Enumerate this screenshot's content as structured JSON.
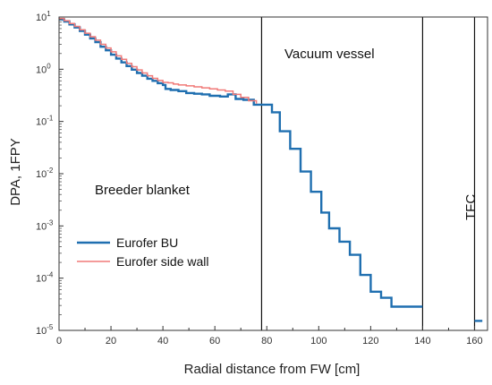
{
  "chart_data": {
    "type": "line",
    "xlabel": "Radial distance from FW [cm]",
    "ylabel": "DPA, 1FPY",
    "xlim": [
      0,
      165
    ],
    "ylim": [
      1e-05,
      10
    ],
    "yscale": "log",
    "x_ticks": [
      0,
      20,
      40,
      60,
      80,
      100,
      120,
      140,
      160
    ],
    "y_ticks": [
      {
        "value": 1e-05,
        "base": "10",
        "exp": "-5"
      },
      {
        "value": 0.0001,
        "base": "10",
        "exp": "-4"
      },
      {
        "value": 0.001,
        "base": "10",
        "exp": "-3"
      },
      {
        "value": 0.01,
        "base": "10",
        "exp": "-2"
      },
      {
        "value": 0.1,
        "base": "10",
        "exp": "-1"
      },
      {
        "value": 1,
        "base": "10",
        "exp": "0"
      },
      {
        "value": 10,
        "base": "10",
        "exp": "1"
      }
    ],
    "grid": false,
    "legend_position": "bottom-left",
    "region_boundaries": [
      78,
      140,
      160
    ],
    "annotations": [
      {
        "text": "Breeder blanket"
      },
      {
        "text": "Vacuum vessel"
      },
      {
        "text": "TFC"
      }
    ],
    "series": [
      {
        "name": "Eurofer BU",
        "color": "#1f6fb0",
        "step": true,
        "segments": [
          [
            [
              0,
              9.0
            ],
            [
              2,
              8.2
            ],
            [
              4,
              7.2
            ],
            [
              6,
              6.3
            ],
            [
              8,
              5.4
            ],
            [
              10,
              4.6
            ],
            [
              12,
              3.9
            ],
            [
              14,
              3.3
            ],
            [
              16,
              2.7
            ],
            [
              18,
              2.3
            ],
            [
              20,
              1.9
            ],
            [
              22,
              1.6
            ],
            [
              24,
              1.35
            ],
            [
              26,
              1.15
            ],
            [
              28,
              0.98
            ],
            [
              30,
              0.85
            ],
            [
              32,
              0.75
            ],
            [
              34,
              0.66
            ],
            [
              36,
              0.6
            ],
            [
              38,
              0.54
            ],
            [
              40,
              0.5
            ],
            [
              41,
              0.42
            ],
            [
              43,
              0.4
            ],
            [
              46,
              0.38
            ],
            [
              49,
              0.35
            ],
            [
              52,
              0.34
            ],
            [
              55,
              0.33
            ],
            [
              58,
              0.31
            ],
            [
              62,
              0.3
            ],
            [
              65,
              0.33
            ],
            [
              68,
              0.27
            ],
            [
              71,
              0.26
            ],
            [
              73,
              0.26
            ],
            [
              75,
              0.21
            ],
            [
              78,
              0.21
            ],
            [
              82,
              0.15
            ],
            [
              85,
              0.065
            ],
            [
              89,
              0.03
            ],
            [
              93,
              0.011
            ],
            [
              97,
              0.0045
            ],
            [
              101,
              0.0018
            ],
            [
              104,
              0.0009
            ],
            [
              108,
              0.0005
            ],
            [
              112,
              0.00028
            ],
            [
              116,
              0.000115
            ],
            [
              120,
              5.5e-05
            ],
            [
              124,
              4.2e-05
            ],
            [
              128,
              2.85e-05
            ],
            [
              140,
              2.85e-05
            ]
          ],
          [
            [
              160,
              1.52e-05
            ],
            [
              163,
              1.52e-05
            ]
          ]
        ]
      },
      {
        "name": "Eurofer side wall",
        "color": "#f07a78",
        "step": true,
        "segments": [
          [
            [
              0,
              9.4
            ],
            [
              2,
              8.5
            ],
            [
              4,
              7.5
            ],
            [
              6,
              6.6
            ],
            [
              8,
              5.7
            ],
            [
              10,
              4.9
            ],
            [
              12,
              4.2
            ],
            [
              14,
              3.6
            ],
            [
              16,
              3.0
            ],
            [
              18,
              2.55
            ],
            [
              20,
              2.15
            ],
            [
              22,
              1.8
            ],
            [
              24,
              1.55
            ],
            [
              26,
              1.3
            ],
            [
              28,
              1.12
            ],
            [
              30,
              0.97
            ],
            [
              32,
              0.85
            ],
            [
              34,
              0.75
            ],
            [
              36,
              0.67
            ],
            [
              38,
              0.61
            ],
            [
              40,
              0.56
            ],
            [
              42,
              0.55
            ],
            [
              44,
              0.52
            ],
            [
              46,
              0.5
            ],
            [
              49,
              0.48
            ],
            [
              52,
              0.46
            ],
            [
              55,
              0.44
            ],
            [
              58,
              0.42
            ],
            [
              61,
              0.4
            ],
            [
              64,
              0.38
            ],
            [
              67,
              0.33
            ],
            [
              70,
              0.29
            ],
            [
              73,
              0.25
            ],
            [
              76,
              0.22
            ]
          ]
        ]
      }
    ]
  }
}
